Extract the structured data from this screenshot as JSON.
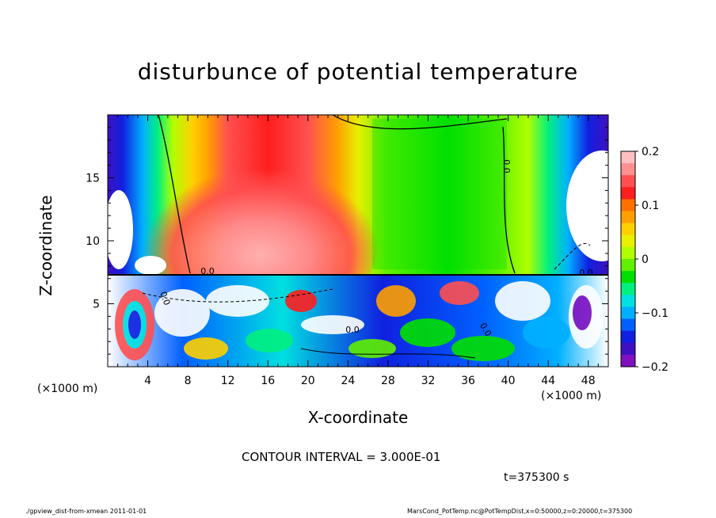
{
  "chart_data": {
    "type": "heatmap",
    "title": "disturbunce of potential temperature",
    "xlabel": "X-coordinate",
    "ylabel": "Z-coordinate",
    "x_unit": "(×1000 m)",
    "xlim": [
      0,
      50
    ],
    "ylim": [
      0,
      20
    ],
    "x_ticks": [
      "4",
      "8",
      "12",
      "16",
      "20",
      "24",
      "28",
      "32",
      "36",
      "40",
      "44",
      "48"
    ],
    "y_ticks": [
      "5",
      "10",
      "15"
    ],
    "colorbar": {
      "range": [
        -0.2,
        0.2
      ],
      "ticks": [
        "0.2",
        "0.1",
        "0",
        "−0.1",
        "−0.2"
      ],
      "colors_top_to_bottom": [
        "#ffc0c0",
        "#ff9090",
        "#ff5050",
        "#ff1e1e",
        "#ff7000",
        "#ffa000",
        "#ffd000",
        "#e8f000",
        "#b0ff00",
        "#60f000",
        "#00e000",
        "#00f080",
        "#00e0e0",
        "#00b0ff",
        "#0060ff",
        "#1020e0",
        "#4010c0",
        "#8010c0"
      ]
    },
    "contour_interval": "CONTOUR INTERVAL = 3.000E-01",
    "contour_labels": [
      "0.0",
      "0.0",
      "0.0",
      "0.0",
      "0.0",
      "0.0"
    ]
  },
  "annotations": {
    "time": "t=375300 s",
    "footer_left": "./gpview_dist-from-xmean  2011-01-01",
    "footer_right": "MarsCond_PotTemp.nc@PotTempDist,x=0:50000,z=0:20000,t=375300"
  }
}
